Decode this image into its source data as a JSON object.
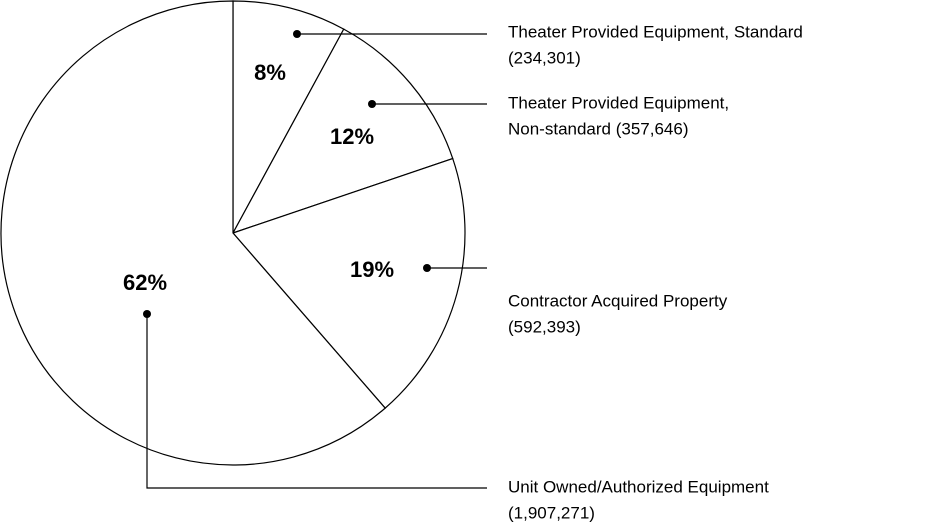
{
  "chart_data": {
    "type": "pie",
    "categories": [
      [
        "Theater Provided Equipment, Standard",
        "(234,301)"
      ],
      [
        "Theater Provided Equipment,",
        "Non-standard (357,646)"
      ],
      [
        "Contractor Acquired Property",
        "(592,393)"
      ],
      [
        "Unit Owned/Authorized Equipment",
        "(1,907,271)"
      ]
    ],
    "values": [
      8,
      12,
      19,
      62
    ],
    "value_labels": [
      "8%",
      "12%",
      "19%",
      "62%"
    ],
    "color": "#ffffff"
  }
}
